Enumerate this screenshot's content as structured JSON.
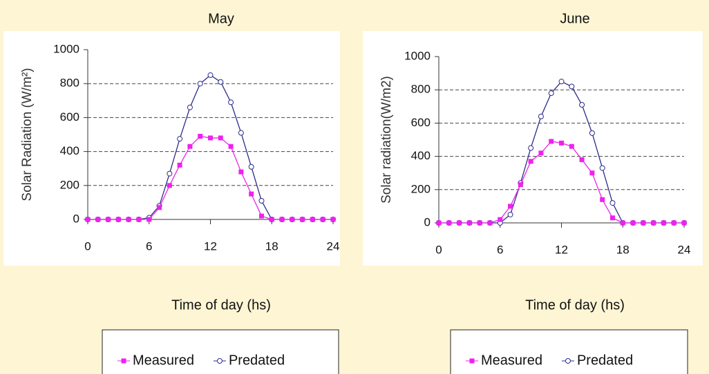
{
  "chart_data": [
    {
      "type": "line",
      "title": "May",
      "x_label": "Time of day (hs)",
      "y_label": "Solar Radiation (W/m²)",
      "x": [
        0,
        1,
        2,
        3,
        4,
        5,
        6,
        7,
        8,
        9,
        10,
        11,
        12,
        13,
        14,
        15,
        16,
        17,
        18,
        19,
        20,
        21,
        22,
        23,
        24
      ],
      "series": [
        {
          "name": "Measured",
          "color": "#ee22ee",
          "values": [
            0,
            0,
            0,
            0,
            0,
            0,
            0,
            70,
            200,
            320,
            430,
            490,
            480,
            480,
            430,
            280,
            150,
            20,
            0,
            0,
            0,
            0,
            0,
            0,
            0
          ]
        },
        {
          "name": "Predated",
          "color": "#2b2b88",
          "values": [
            0,
            0,
            0,
            0,
            0,
            0,
            10,
            80,
            270,
            475,
            660,
            800,
            850,
            810,
            690,
            510,
            310,
            110,
            0,
            0,
            0,
            0,
            0,
            0,
            0
          ]
        }
      ],
      "xlim": [
        0,
        24
      ],
      "xticks": [
        0,
        6,
        12,
        18,
        24
      ],
      "ylim": [
        0,
        1000
      ],
      "yticks": [
        0,
        200,
        400,
        600,
        800,
        1000
      ],
      "grid": true
    },
    {
      "type": "line",
      "title": "June",
      "x_label": "Time of day (hs)",
      "y_label": "Solar radiation(W/m2)",
      "x": [
        0,
        1,
        2,
        3,
        4,
        5,
        6,
        7,
        8,
        9,
        10,
        11,
        12,
        13,
        14,
        15,
        16,
        17,
        18,
        19,
        20,
        21,
        22,
        23,
        24
      ],
      "series": [
        {
          "name": "Measured",
          "color": "#ee22ee",
          "values": [
            0,
            0,
            0,
            0,
            0,
            0,
            20,
            100,
            230,
            370,
            420,
            490,
            480,
            460,
            380,
            300,
            140,
            30,
            0,
            0,
            0,
            0,
            0,
            0,
            0
          ]
        },
        {
          "name": "Predated",
          "color": "#2b2b88",
          "values": [
            0,
            0,
            0,
            0,
            0,
            0,
            0,
            50,
            240,
            450,
            640,
            780,
            850,
            820,
            710,
            540,
            330,
            120,
            0,
            0,
            0,
            0,
            0,
            0,
            0
          ]
        }
      ],
      "xlim": [
        0,
        24
      ],
      "xticks": [
        0,
        6,
        12,
        18,
        24
      ],
      "ylim": [
        0,
        1000
      ],
      "yticks": [
        0,
        200,
        400,
        600,
        800,
        1000
      ],
      "grid": true
    }
  ]
}
